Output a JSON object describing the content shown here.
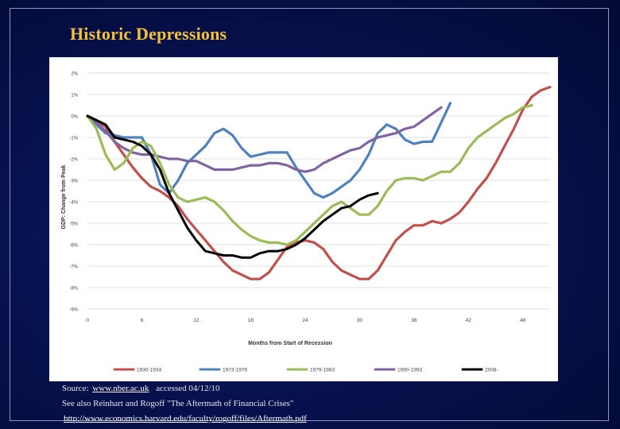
{
  "slide": {
    "title": "Historic Depressions"
  },
  "notes": {
    "source_prefix": "Source:",
    "source_link": "www.nber.ac.uk",
    "source_suffix": "accessed 04/12/10",
    "see_also": "See also Reinhart and Rogoff  \"The Aftermath of Financial Crises\"",
    "paper_link": "http://www.economics.harvard.edu/faculty/rogoff/files/Aftermath.pdf"
  },
  "colors": {
    "s1930": "#c0504d",
    "s1973": "#4f81bd",
    "s1979": "#9bbb59",
    "s1990": "#8064a2",
    "s2008": "#000000"
  },
  "chart_data": {
    "type": "line",
    "title": "",
    "xlabel": "Months from Start of Recession",
    "ylabel": "GDP: Change from Peak",
    "xlim": [
      0,
      51
    ],
    "ylim": [
      -9,
      2
    ],
    "xticks": [
      "0",
      "6",
      "12",
      "18",
      "24",
      "30",
      "36",
      "42",
      "48"
    ],
    "xtick_values": [
      0,
      6,
      12,
      18,
      24,
      30,
      36,
      42,
      48
    ],
    "yticks": [
      "2%",
      "1%",
      "0%",
      "-1%",
      "-2%",
      "-3%",
      "-4%",
      "-5%",
      "-6%",
      "-7%",
      "-8%",
      "-9%"
    ],
    "ytick_values": [
      2,
      1,
      0,
      -1,
      -2,
      -3,
      -4,
      -5,
      -6,
      -7,
      -8,
      -9
    ],
    "grid": true,
    "legend_position": "bottom",
    "series": [
      {
        "name": "1930-1934",
        "color_key": "s1930",
        "points": [
          [
            0,
            0
          ],
          [
            1,
            -0.2
          ],
          [
            2,
            -0.5
          ],
          [
            3,
            -1.2
          ],
          [
            4,
            -1.8
          ],
          [
            5,
            -2.4
          ],
          [
            6,
            -2.9
          ],
          [
            7,
            -3.3
          ],
          [
            8,
            -3.5
          ],
          [
            9,
            -3.8
          ],
          [
            10,
            -4.2
          ],
          [
            11,
            -4.8
          ],
          [
            12,
            -5.3
          ],
          [
            13,
            -5.8
          ],
          [
            14,
            -6.3
          ],
          [
            15,
            -6.8
          ],
          [
            16,
            -7.2
          ],
          [
            17,
            -7.4
          ],
          [
            18,
            -7.6
          ],
          [
            19,
            -7.6
          ],
          [
            20,
            -7.3
          ],
          [
            21,
            -6.7
          ],
          [
            22,
            -6.1
          ],
          [
            23,
            -5.9
          ],
          [
            24,
            -5.8
          ],
          [
            25,
            -5.9
          ],
          [
            26,
            -6.2
          ],
          [
            27,
            -6.8
          ],
          [
            28,
            -7.2
          ],
          [
            29,
            -7.4
          ],
          [
            30,
            -7.6
          ],
          [
            31,
            -7.6
          ],
          [
            32,
            -7.2
          ],
          [
            33,
            -6.5
          ],
          [
            34,
            -5.8
          ],
          [
            35,
            -5.4
          ],
          [
            36,
            -5.1
          ],
          [
            37,
            -5.1
          ],
          [
            38,
            -4.9
          ],
          [
            39,
            -5.0
          ],
          [
            40,
            -4.8
          ],
          [
            41,
            -4.5
          ],
          [
            42,
            -4.0
          ],
          [
            43,
            -3.4
          ],
          [
            44,
            -2.9
          ],
          [
            45,
            -2.2
          ],
          [
            46,
            -1.4
          ],
          [
            47,
            -0.6
          ],
          [
            48,
            0.3
          ],
          [
            49,
            0.9
          ],
          [
            50,
            1.2
          ],
          [
            51,
            1.35
          ]
        ]
      },
      {
        "name": "1973-1976",
        "color_key": "s1973",
        "points": [
          [
            0,
            0
          ],
          [
            1,
            -0.4
          ],
          [
            2,
            -0.8
          ],
          [
            3,
            -0.9
          ],
          [
            4,
            -1.0
          ],
          [
            5,
            -1.0
          ],
          [
            6,
            -1.0
          ],
          [
            7,
            -1.8
          ],
          [
            8,
            -3.2
          ],
          [
            9,
            -3.6
          ],
          [
            10,
            -3.0
          ],
          [
            11,
            -2.2
          ],
          [
            12,
            -1.8
          ],
          [
            13,
            -1.4
          ],
          [
            14,
            -0.8
          ],
          [
            15,
            -0.6
          ],
          [
            16,
            -0.9
          ],
          [
            17,
            -1.5
          ],
          [
            18,
            -1.9
          ],
          [
            19,
            -1.8
          ],
          [
            20,
            -1.7
          ],
          [
            21,
            -1.7
          ],
          [
            22,
            -1.7
          ],
          [
            23,
            -2.4
          ],
          [
            24,
            -3.0
          ],
          [
            25,
            -3.6
          ],
          [
            26,
            -3.8
          ],
          [
            27,
            -3.6
          ],
          [
            28,
            -3.3
          ],
          [
            29,
            -3.0
          ],
          [
            30,
            -2.5
          ],
          [
            31,
            -1.8
          ],
          [
            32,
            -0.8
          ],
          [
            33,
            -0.4
          ],
          [
            34,
            -0.6
          ],
          [
            35,
            -1.1
          ],
          [
            36,
            -1.3
          ],
          [
            37,
            -1.2
          ],
          [
            38,
            -1.2
          ],
          [
            39,
            -0.3
          ],
          [
            40,
            0.6
          ]
        ]
      },
      {
        "name": "1979-1983",
        "color_key": "s1979",
        "points": [
          [
            0,
            0
          ],
          [
            1,
            -0.6
          ],
          [
            2,
            -1.8
          ],
          [
            3,
            -2.5
          ],
          [
            4,
            -2.2
          ],
          [
            5,
            -1.5
          ],
          [
            6,
            -1.2
          ],
          [
            7,
            -1.4
          ],
          [
            8,
            -2.2
          ],
          [
            9,
            -3.2
          ],
          [
            10,
            -3.8
          ],
          [
            11,
            -4.0
          ],
          [
            12,
            -3.9
          ],
          [
            13,
            -3.8
          ],
          [
            14,
            -4.0
          ],
          [
            15,
            -4.4
          ],
          [
            16,
            -4.9
          ],
          [
            17,
            -5.3
          ],
          [
            18,
            -5.6
          ],
          [
            19,
            -5.8
          ],
          [
            20,
            -5.9
          ],
          [
            21,
            -5.9
          ],
          [
            22,
            -6.0
          ],
          [
            23,
            -5.8
          ],
          [
            24,
            -5.4
          ],
          [
            25,
            -5.0
          ],
          [
            26,
            -4.6
          ],
          [
            27,
            -4.2
          ],
          [
            28,
            -4.0
          ],
          [
            29,
            -4.3
          ],
          [
            30,
            -4.6
          ],
          [
            31,
            -4.6
          ],
          [
            32,
            -4.2
          ],
          [
            33,
            -3.5
          ],
          [
            34,
            -3.0
          ],
          [
            35,
            -2.9
          ],
          [
            36,
            -2.9
          ],
          [
            37,
            -3.0
          ],
          [
            38,
            -2.8
          ],
          [
            39,
            -2.6
          ],
          [
            40,
            -2.6
          ],
          [
            41,
            -2.2
          ],
          [
            42,
            -1.5
          ],
          [
            43,
            -1.0
          ],
          [
            44,
            -0.7
          ],
          [
            45,
            -0.4
          ],
          [
            46,
            -0.1
          ],
          [
            47,
            0.1
          ],
          [
            48,
            0.4
          ],
          [
            49,
            0.5
          ]
        ]
      },
      {
        "name": "1990-1993",
        "color_key": "s1990",
        "points": [
          [
            0,
            0
          ],
          [
            1,
            -0.3
          ],
          [
            2,
            -0.7
          ],
          [
            3,
            -1.2
          ],
          [
            4,
            -1.5
          ],
          [
            5,
            -1.7
          ],
          [
            6,
            -1.8
          ],
          [
            7,
            -1.8
          ],
          [
            8,
            -1.9
          ],
          [
            9,
            -2.0
          ],
          [
            10,
            -2.0
          ],
          [
            11,
            -2.1
          ],
          [
            12,
            -2.1
          ],
          [
            13,
            -2.3
          ],
          [
            14,
            -2.5
          ],
          [
            15,
            -2.5
          ],
          [
            16,
            -2.5
          ],
          [
            17,
            -2.4
          ],
          [
            18,
            -2.3
          ],
          [
            19,
            -2.3
          ],
          [
            20,
            -2.2
          ],
          [
            21,
            -2.2
          ],
          [
            22,
            -2.3
          ],
          [
            23,
            -2.5
          ],
          [
            24,
            -2.6
          ],
          [
            25,
            -2.5
          ],
          [
            26,
            -2.2
          ],
          [
            27,
            -2.0
          ],
          [
            28,
            -1.8
          ],
          [
            29,
            -1.6
          ],
          [
            30,
            -1.5
          ],
          [
            31,
            -1.2
          ],
          [
            32,
            -1.0
          ],
          [
            33,
            -0.9
          ],
          [
            34,
            -0.8
          ],
          [
            35,
            -0.6
          ],
          [
            36,
            -0.5
          ],
          [
            37,
            -0.2
          ],
          [
            38,
            0.1
          ],
          [
            39,
            0.4
          ]
        ]
      },
      {
        "name": "2008-",
        "color_key": "s2008",
        "points": [
          [
            0,
            0
          ],
          [
            1,
            -0.2
          ],
          [
            2,
            -0.4
          ],
          [
            3,
            -1.0
          ],
          [
            4,
            -1.1
          ],
          [
            5,
            -1.2
          ],
          [
            6,
            -1.4
          ],
          [
            7,
            -1.8
          ],
          [
            8,
            -2.5
          ],
          [
            9,
            -3.6
          ],
          [
            10,
            -4.4
          ],
          [
            11,
            -5.2
          ],
          [
            12,
            -5.8
          ],
          [
            13,
            -6.3
          ],
          [
            14,
            -6.4
          ],
          [
            15,
            -6.5
          ],
          [
            16,
            -6.5
          ],
          [
            17,
            -6.6
          ],
          [
            18,
            -6.6
          ],
          [
            19,
            -6.4
          ],
          [
            20,
            -6.3
          ],
          [
            21,
            -6.3
          ],
          [
            22,
            -6.2
          ],
          [
            23,
            -6.0
          ],
          [
            24,
            -5.7
          ],
          [
            25,
            -5.3
          ],
          [
            26,
            -4.9
          ],
          [
            27,
            -4.6
          ],
          [
            28,
            -4.3
          ],
          [
            29,
            -4.2
          ],
          [
            30,
            -3.9
          ],
          [
            31,
            -3.7
          ],
          [
            32,
            -3.6
          ]
        ]
      }
    ]
  }
}
